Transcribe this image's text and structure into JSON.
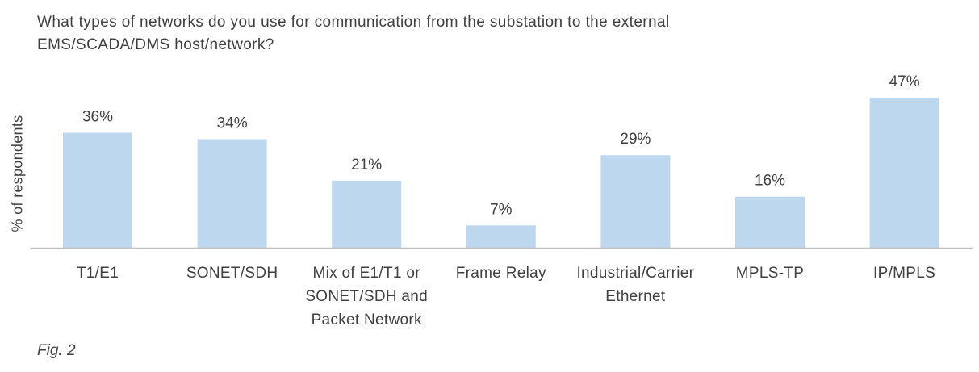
{
  "chart_data": {
    "type": "bar",
    "title": "What types of networks do you use for communication from the substation to the external EMS/SCADA/DMS host/network?",
    "title_lines": [
      "What types of networks do you use for communication from the substation to the external",
      "EMS/SCADA/DMS host/network?"
    ],
    "ylabel": "% of respondents",
    "categories": [
      "T1/E1",
      "SONET/SDH",
      "Mix of E1/T1 or SONET/SDH and Packet Network",
      "Frame Relay",
      "Industrial/Carrier Ethernet",
      "MPLS-TP",
      "IP/MPLS"
    ],
    "category_lines": [
      [
        "T1/E1"
      ],
      [
        "SONET/SDH"
      ],
      [
        "Mix of E1/T1 or",
        "SONET/SDH and",
        "Packet Network"
      ],
      [
        "Frame Relay"
      ],
      [
        "Industrial/Carrier",
        "Ethernet"
      ],
      [
        "MPLS-TP"
      ],
      [
        "IP/MPLS"
      ]
    ],
    "values": [
      36,
      34,
      21,
      7,
      29,
      16,
      47
    ],
    "data_labels": [
      "36%",
      "34%",
      "21%",
      "7%",
      "29%",
      "16%",
      "47%"
    ],
    "ylim": [
      0,
      47
    ],
    "grid": false,
    "legend": "none",
    "bar_color": "#bdd7ee",
    "axis_color": "#bfbfbf"
  },
  "caption": "Fig. 2"
}
